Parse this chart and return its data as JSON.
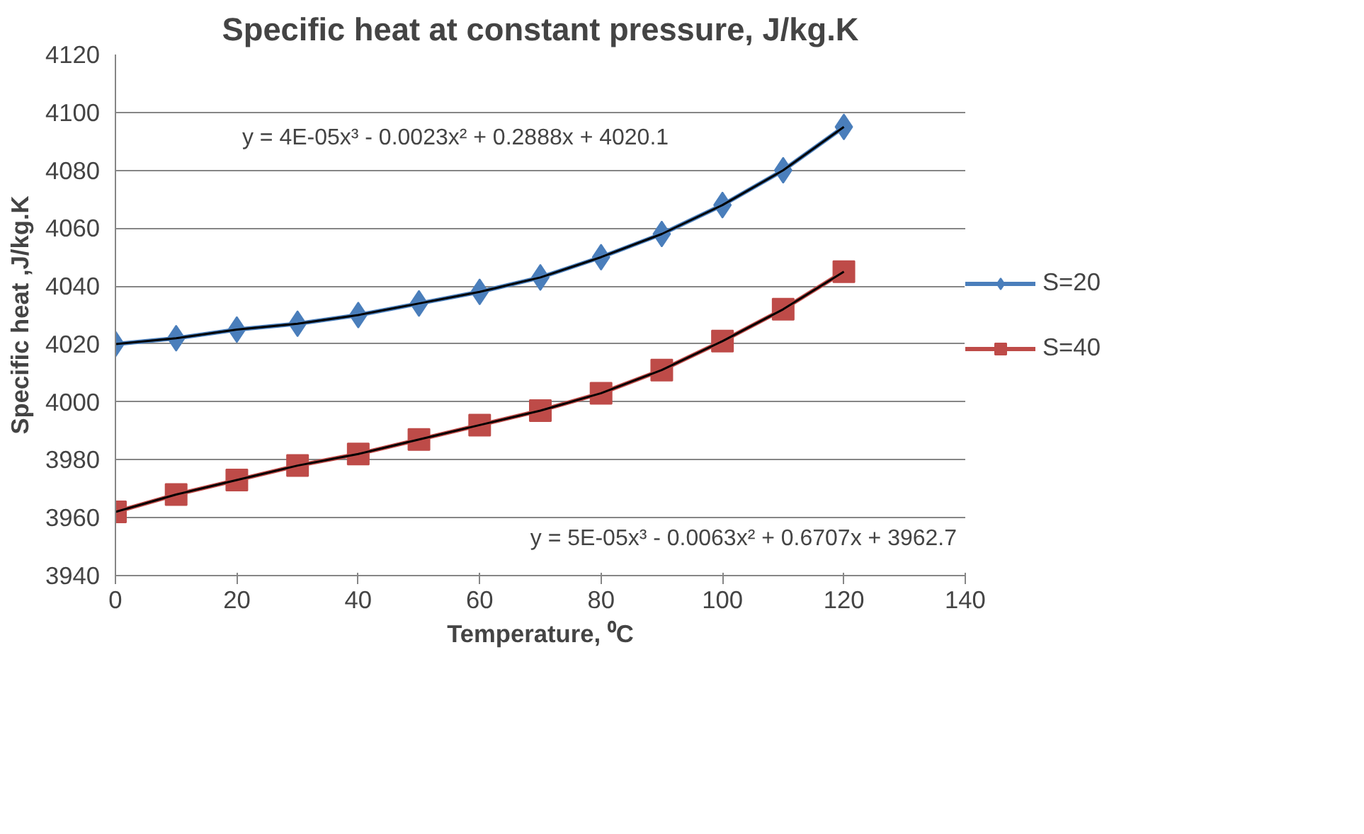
{
  "chart_data": {
    "type": "line",
    "title": "Specific heat at constant pressure, J/kg.K",
    "xlabel": "Temperature, ⁰C",
    "ylabel": "Specific heat ,J/kg.K",
    "x": [
      0,
      10,
      20,
      30,
      40,
      50,
      60,
      70,
      80,
      90,
      100,
      110,
      120
    ],
    "series": [
      {
        "name": "S=20",
        "color": "#4a7ebb",
        "marker": "diamond",
        "values": [
          4020,
          4022,
          4025,
          4027,
          4030,
          4034,
          4038,
          4043,
          4050,
          4058,
          4068,
          4080,
          4095
        ]
      },
      {
        "name": "S=40",
        "color": "#be4b48",
        "marker": "square",
        "values": [
          3962,
          3968,
          3973,
          3978,
          3982,
          3987,
          3992,
          3997,
          4003,
          4011,
          4021,
          4032,
          4045
        ]
      },
      {
        "type": "line",
        "color": "#000000",
        "marker": "none",
        "values": [
          4020,
          4022,
          4025,
          4027,
          4030,
          4034,
          4038,
          4043,
          4050,
          4058,
          4068,
          4080,
          4095
        ]
      },
      {
        "type": "line",
        "color": "#000000",
        "marker": "none",
        "values": [
          3962,
          3968,
          3973,
          3978,
          3982,
          3987,
          3992,
          3997,
          4003,
          4011,
          4021,
          4032,
          4045
        ]
      }
    ],
    "annotations": [
      "y = 4E-05x³ - 0.0023x² + 0.2888x + 4020.1",
      "y = 5E-05x³ - 0.0063x² + 0.6707x + 3962.7"
    ],
    "xlim": [
      0,
      140
    ],
    "xticks": [
      0,
      20,
      40,
      60,
      80,
      100,
      120,
      140
    ],
    "ylim": [
      3940,
      4120
    ],
    "yticks": [
      3940,
      3960,
      3980,
      4000,
      4020,
      4040,
      4060,
      4080,
      4100,
      4120
    ],
    "grid": "y",
    "legend": "right"
  }
}
